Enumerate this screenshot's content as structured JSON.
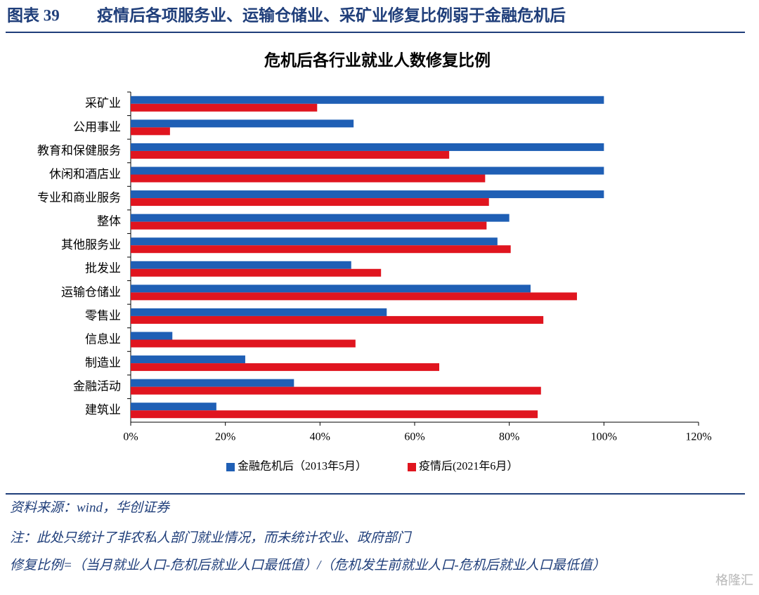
{
  "header": {
    "label": "图表 39",
    "title": "疫情后各项服务业、运输仓储业、采矿业修复比例弱于金融危机后"
  },
  "chart_data": {
    "type": "bar",
    "orientation": "horizontal",
    "title": "危机后各行业就业人数修复比例",
    "categories": [
      "采矿业",
      "公用事业",
      "教育和保健服务",
      "休闲和酒店业",
      "专业和商业服务",
      "整体",
      "其他服务业",
      "批发业",
      "运输仓储业",
      "零售业",
      "信息业",
      "制造业",
      "金融活动",
      "建筑业"
    ],
    "series": [
      {
        "name": "金融危机后（2013年5月）",
        "color": "#1f5fb5",
        "values": [
          100,
          47.1,
          100,
          100,
          100,
          80.0,
          77.5,
          46.6,
          84.5,
          54.1,
          8.8,
          24.2,
          34.5,
          18.1
        ]
      },
      {
        "name": "疫情后(2021年6月）",
        "color": "#e0151f",
        "values": [
          39.4,
          8.3,
          67.3,
          74.9,
          75.7,
          75.2,
          80.3,
          52.9,
          94.3,
          87.2,
          47.5,
          65.2,
          86.7,
          86.0
        ]
      }
    ],
    "xlim": [
      0,
      120
    ],
    "xticks": [
      {
        "value": 0,
        "label": "0%"
      },
      {
        "value": 20,
        "label": "20%"
      },
      {
        "value": 40,
        "label": "40%"
      },
      {
        "value": 60,
        "label": "60%"
      },
      {
        "value": 80,
        "label": "80%"
      },
      {
        "value": 100,
        "label": "100%"
      },
      {
        "value": 120,
        "label": "120%"
      }
    ],
    "grid": false,
    "legend": "bottom"
  },
  "notes": [
    "资料来源：wind，华创证券",
    "注：此处只统计了非农私人部门就业情况，而未统计农业、政府部门",
    "修复比例=（当月就业人口-危机后就业人口最低值）/（危机发生前就业人口-危机后就业人口最低值）"
  ],
  "watermark": "格隆汇"
}
